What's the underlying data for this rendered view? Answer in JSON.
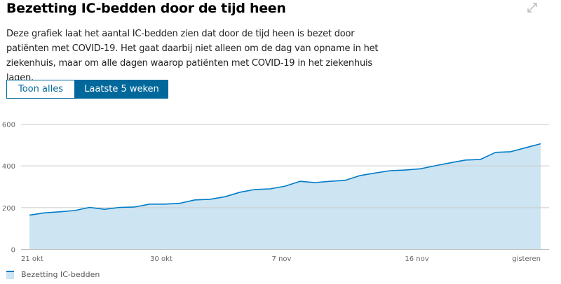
{
  "title": "Bezetting IC-bedden door de tijd heen",
  "description": "Deze grafiek laat het aantal IC-bedden zien dat door de tijd heen is bezet door patiënten met COVID-19. Het gaat daarbij niet alleen om de dag van opname in het ziekenhuis, maar om alle dagen waarop patiënten met COVID-19 in het ziekenhuis lagen.",
  "expand_icon": "expand-arrows-icon",
  "buttons": {
    "show_all": "Toon alles",
    "last_5_weeks": "Laatste 5 weken",
    "active": "last_5_weeks"
  },
  "colors": {
    "accent": "#01689b",
    "line": "#007bc7",
    "fill": "#cde4f2"
  },
  "chart_data": {
    "type": "area",
    "x_tick_labels": [
      "21 okt",
      "30 okt",
      "7 nov",
      "16 nov",
      "gisteren"
    ],
    "x_tick_dates": [
      "21 okt",
      "30 okt",
      "7 nov",
      "16 nov",
      "24 nov"
    ],
    "x": [
      "21 okt",
      "22 okt",
      "23 okt",
      "24 okt",
      "25 okt",
      "26 okt",
      "27 okt",
      "28 okt",
      "29 okt",
      "30 okt",
      "31 okt",
      "1 nov",
      "2 nov",
      "3 nov",
      "4 nov",
      "5 nov",
      "6 nov",
      "7 nov",
      "8 nov",
      "9 nov",
      "10 nov",
      "11 nov",
      "12 nov",
      "13 nov",
      "14 nov",
      "15 nov",
      "16 nov",
      "17 nov",
      "18 nov",
      "19 nov",
      "20 nov",
      "21 nov",
      "22 nov",
      "23 nov",
      "24 nov"
    ],
    "series": [
      {
        "name": "Bezetting IC-bedden",
        "values": [
          164,
          175,
          180,
          186,
          201,
          192,
          201,
          203,
          217,
          217,
          221,
          237,
          240,
          252,
          274,
          287,
          290,
          303,
          326,
          320,
          326,
          331,
          354,
          366,
          377,
          380,
          386,
          401,
          415,
          428,
          431,
          465,
          468,
          487,
          506
        ]
      }
    ],
    "y_ticks": [
      0,
      200,
      400,
      600
    ],
    "ylim": [
      0,
      600
    ],
    "grid": true,
    "legend": "bottom-left"
  }
}
